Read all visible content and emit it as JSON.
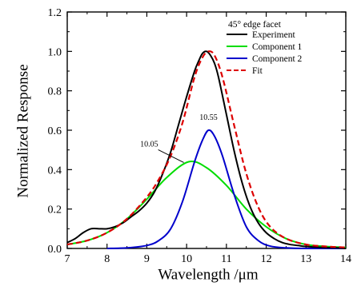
{
  "chart_data": {
    "type": "line",
    "xlabel": "Wavelength /μm",
    "ylabel": "Normalized Response",
    "xlim": [
      7,
      14
    ],
    "ylim": [
      0,
      1.2
    ],
    "x_ticks": [
      "7",
      "8",
      "9",
      "10",
      "11",
      "12",
      "13",
      "14"
    ],
    "y_ticks": [
      "0.0",
      "0.2",
      "0.4",
      "0.6",
      "0.8",
      "1.0",
      "1.2"
    ],
    "grid": false,
    "legend_title": "45° edge facet",
    "legend_position": "top-right",
    "annotations": [
      {
        "text": "10.05",
        "x": 10.05,
        "y": 0.44
      },
      {
        "text": "10.55",
        "x": 10.55,
        "y": 0.6
      }
    ],
    "series": [
      {
        "name": "Experiment",
        "color": "#000000",
        "style": "solid",
        "x": [
          7.0,
          7.2,
          7.4,
          7.6,
          7.8,
          8.0,
          8.2,
          8.4,
          8.6,
          8.8,
          9.0,
          9.2,
          9.4,
          9.6,
          9.8,
          10.0,
          10.2,
          10.3,
          10.4,
          10.5,
          10.6,
          10.7,
          10.8,
          11.0,
          11.2,
          11.4,
          11.6,
          11.8,
          12.0,
          12.2,
          12.4,
          12.6,
          12.8,
          13.0,
          13.4,
          13.8,
          14.0
        ],
        "y": [
          0.03,
          0.05,
          0.08,
          0.1,
          0.1,
          0.1,
          0.11,
          0.13,
          0.16,
          0.19,
          0.23,
          0.29,
          0.38,
          0.49,
          0.63,
          0.77,
          0.9,
          0.95,
          0.99,
          1.0,
          0.98,
          0.94,
          0.87,
          0.68,
          0.49,
          0.33,
          0.21,
          0.13,
          0.08,
          0.05,
          0.03,
          0.02,
          0.015,
          0.01,
          0.005,
          0.003,
          0.0
        ]
      },
      {
        "name": "Component 1",
        "color": "#00dd00",
        "style": "solid",
        "x": [
          7.0,
          7.5,
          8.0,
          8.5,
          9.0,
          9.5,
          10.05,
          10.5,
          11.0,
          11.5,
          12.0,
          12.5,
          13.0,
          13.5,
          14.0
        ],
        "y": [
          0.02,
          0.04,
          0.08,
          0.15,
          0.25,
          0.36,
          0.44,
          0.41,
          0.32,
          0.2,
          0.11,
          0.05,
          0.02,
          0.01,
          0.005
        ]
      },
      {
        "name": "Component 2",
        "color": "#0000cc",
        "style": "solid",
        "x": [
          8.0,
          8.5,
          9.0,
          9.3,
          9.6,
          9.9,
          10.2,
          10.4,
          10.55,
          10.7,
          10.9,
          11.2,
          11.5,
          11.8,
          12.1,
          12.5,
          13.0,
          14.0
        ],
        "y": [
          0.0,
          0.003,
          0.015,
          0.04,
          0.1,
          0.24,
          0.44,
          0.55,
          0.6,
          0.57,
          0.47,
          0.27,
          0.11,
          0.04,
          0.012,
          0.003,
          0.0,
          0.0
        ]
      },
      {
        "name": "Fit",
        "color": "#dd0000",
        "style": "dashed",
        "x": [
          7.0,
          7.5,
          8.0,
          8.5,
          9.0,
          9.3,
          9.6,
          9.9,
          10.2,
          10.4,
          10.55,
          10.7,
          10.9,
          11.2,
          11.5,
          11.8,
          12.1,
          12.5,
          13.0,
          13.5,
          14.0
        ],
        "y": [
          0.02,
          0.04,
          0.08,
          0.15,
          0.26,
          0.35,
          0.47,
          0.64,
          0.87,
          0.97,
          1.0,
          0.98,
          0.87,
          0.62,
          0.38,
          0.21,
          0.11,
          0.05,
          0.02,
          0.01,
          0.005
        ]
      }
    ]
  }
}
